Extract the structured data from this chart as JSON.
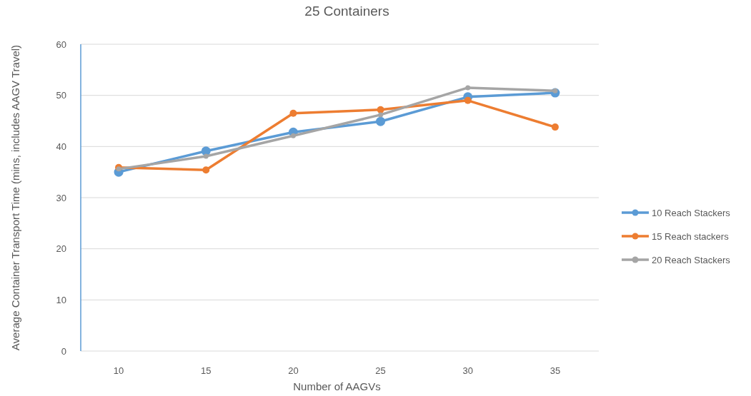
{
  "chart_data": {
    "type": "line",
    "title": "25 Containers",
    "xlabel": "Number of AAGVs",
    "ylabel": "Average Container Transport Time (mins, includes AAGV Travel)",
    "categories": [
      "10",
      "15",
      "20",
      "25",
      "30",
      "35"
    ],
    "series": [
      {
        "name": "10 Reach Stackers",
        "color": "#5b9bd5",
        "values": [
          35.0,
          39.1,
          42.8,
          44.9,
          49.7,
          50.5
        ]
      },
      {
        "name": "15 Reach stackers",
        "color": "#ed7d31",
        "values": [
          35.9,
          35.4,
          46.5,
          47.2,
          49.0,
          43.8
        ]
      },
      {
        "name": "20 Reach Stackers",
        "color": "#a5a5a5",
        "values": [
          35.6,
          38.1,
          42.1,
          46.2,
          51.5,
          50.9
        ]
      }
    ],
    "ylim": [
      0,
      60
    ],
    "yticks": [
      0,
      10,
      20,
      30,
      40,
      50,
      60
    ],
    "grid": "y",
    "legend": "right",
    "marker": "circle",
    "line_style": "solid"
  }
}
